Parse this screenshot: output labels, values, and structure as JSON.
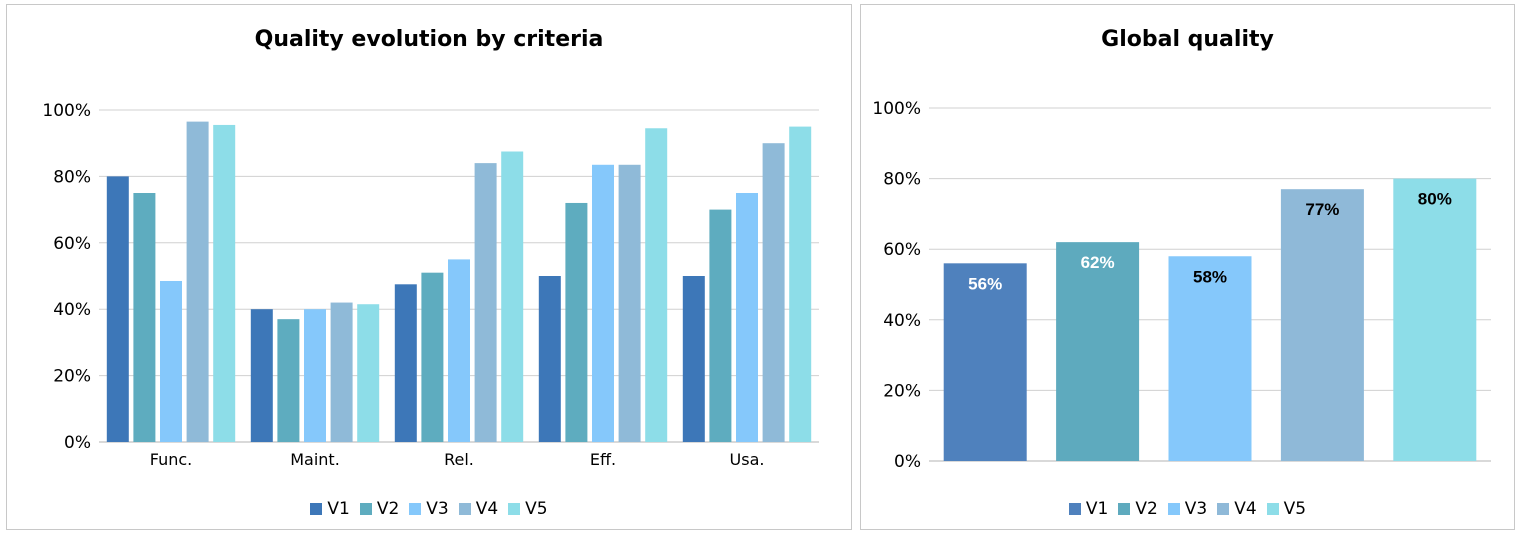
{
  "chart_data": [
    {
      "type": "bar",
      "title": "Quality evolution by criteria",
      "categories": [
        "Func.",
        "Maint.",
        "Rel.",
        "Eff.",
        "Usa."
      ],
      "series": [
        {
          "name": "V1",
          "color": "#3d77b8",
          "values": [
            80,
            40,
            47.5,
            50,
            50
          ]
        },
        {
          "name": "V2",
          "color": "#5eacbf",
          "values": [
            75,
            37,
            51,
            72,
            70
          ]
        },
        {
          "name": "V3",
          "color": "#85c8fb",
          "values": [
            48.5,
            40,
            55,
            83.5,
            75
          ]
        },
        {
          "name": "V4",
          "color": "#8fbad8",
          "values": [
            96.5,
            42,
            84,
            83.5,
            90
          ]
        },
        {
          "name": "V5",
          "color": "#8ddde8",
          "values": [
            95.5,
            41.5,
            87.5,
            94.5,
            95
          ]
        }
      ],
      "yticks": [
        "0%",
        "20%",
        "40%",
        "60%",
        "80%",
        "100%"
      ],
      "ylim": [
        0,
        100
      ],
      "grid": true,
      "legend": "bottom"
    },
    {
      "type": "bar",
      "title": "Global quality",
      "categories": [
        "V1",
        "V2",
        "V3",
        "V4",
        "V5"
      ],
      "values": [
        56,
        62,
        58,
        77,
        80
      ],
      "data_labels": [
        "56%",
        "62%",
        "58%",
        "77%",
        "80%"
      ],
      "colors": [
        "#4f81bd",
        "#5eaabe",
        "#85c8fb",
        "#8fb9d8",
        "#8ddde8"
      ],
      "label_colors": [
        "#ffffff",
        "#ffffff",
        "#000000",
        "#000000",
        "#000000"
      ],
      "yticks": [
        "0%",
        "20%",
        "40%",
        "60%",
        "80%",
        "100%"
      ],
      "ylim": [
        0,
        100
      ],
      "grid": true,
      "legend": "bottom"
    }
  ]
}
